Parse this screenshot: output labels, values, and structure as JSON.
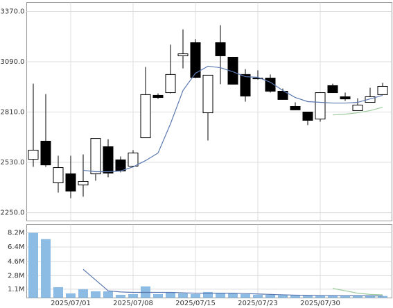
{
  "chart_data": [
    {
      "type": "candlestick",
      "open": [
        2547,
        2648,
        2416,
        2466,
        2404,
        2466,
        2617,
        2544,
        2509,
        2667,
        2903,
        2918,
        3123,
        3196,
        2806,
        3196,
        3115,
        3019,
        2995,
        2999,
        2926,
        2841,
        2810,
        2771,
        2957,
        2895,
        2818,
        2864,
        2907
      ],
      "high": [
        2968,
        2910,
        2567,
        2567,
        2574,
        2663,
        2659,
        2563,
        2598,
        3061,
        2914,
        3185,
        3270,
        3216,
        3015,
        3293,
        3115,
        3049,
        3042,
        3019,
        2941,
        2864,
        2810,
        2918,
        2968,
        2918,
        2887,
        2945,
        2972
      ],
      "low": [
        2505,
        2505,
        2362,
        2331,
        2339,
        2428,
        2447,
        2474,
        2505,
        2667,
        2883,
        2914,
        3053,
        2999,
        2652,
        2965,
        2965,
        2868,
        2991,
        2918,
        2880,
        2822,
        2737,
        2756,
        2918,
        2872,
        2818,
        2864,
        2907
      ],
      "close": [
        2598,
        2516,
        2501,
        2370,
        2424,
        2663,
        2470,
        2482,
        2582,
        2907,
        2891,
        3019,
        3134,
        3003,
        3015,
        3123,
        2965,
        2899,
        2999,
        2926,
        2880,
        2822,
        2764,
        2918,
        2918,
        2883,
        2849,
        2895,
        2953
      ],
      "up_color": "#ffffff",
      "down_color": "#000000",
      "outline_color": "#000000",
      "lines": [
        {
          "color": "#5a78b0",
          "values": [
            null,
            null,
            null,
            null,
            2486,
            2478,
            2478,
            2482,
            2505,
            2540,
            2582,
            2745,
            2930,
            3026,
            3065,
            3057,
            3034,
            3007,
            3003,
            2976,
            2930,
            2891,
            2868,
            2864,
            2860,
            2860,
            2864,
            2883,
            2903
          ]
        },
        {
          "color": "#9ccc9c",
          "values": [
            null,
            null,
            null,
            null,
            null,
            null,
            null,
            null,
            null,
            null,
            null,
            null,
            null,
            null,
            null,
            null,
            null,
            null,
            null,
            null,
            null,
            null,
            null,
            null,
            2794,
            2798,
            2806,
            2818,
            2837
          ]
        }
      ],
      "ylim": [
        2204,
        3420
      ],
      "yticks": [
        {
          "value": 2250,
          "label": "2250.0"
        },
        {
          "value": 2530,
          "label": "2530.0"
        },
        {
          "value": 2810,
          "label": "2810.0"
        },
        {
          "value": 3090,
          "label": "3090.0"
        },
        {
          "value": 3370,
          "label": "3370.0"
        }
      ],
      "grid": true
    },
    {
      "type": "bar",
      "categories": [
        null,
        null,
        null,
        "2025/07/01",
        null,
        null,
        null,
        null,
        "2025/07/08",
        null,
        null,
        null,
        null,
        "2025/07/15",
        null,
        null,
        null,
        null,
        "2025/07/23",
        null,
        null,
        null,
        null,
        "2025/07/30",
        null,
        null,
        null,
        null,
        null
      ],
      "values": [
        8200000,
        7400000,
        1360000,
        570000,
        1100000,
        830000,
        830000,
        400000,
        480000,
        1450000,
        480000,
        660000,
        570000,
        480000,
        750000,
        660000,
        570000,
        480000,
        400000,
        400000,
        350000,
        350000,
        300000,
        300000,
        300000,
        250000,
        250000,
        250000,
        250000
      ],
      "color": "#8cbbe3",
      "lines": [
        {
          "color": "#5a78b0",
          "values": [
            null,
            null,
            null,
            null,
            3600000,
            2250000,
            900000,
            750000,
            700000,
            700000,
            700000,
            700000,
            650000,
            600000,
            600000,
            600000,
            600000,
            550000,
            500000,
            450000,
            400000,
            350000,
            330000,
            300000,
            300000,
            280000,
            270000,
            260000,
            250000
          ]
        },
        {
          "color": "#9ccc9c",
          "values": [
            null,
            null,
            null,
            null,
            null,
            null,
            null,
            null,
            null,
            null,
            null,
            null,
            null,
            null,
            null,
            null,
            null,
            null,
            null,
            null,
            null,
            null,
            null,
            null,
            1200000,
            900000,
            600000,
            450000,
            400000
          ]
        }
      ],
      "ylim": [
        0,
        9250000
      ],
      "yticks": [
        {
          "value": 1100000,
          "label": "1.1M"
        },
        {
          "value": 2800000,
          "label": "2.8M"
        },
        {
          "value": 4600000,
          "label": "4.6M"
        },
        {
          "value": 6400000,
          "label": "6.4M"
        },
        {
          "value": 8200000,
          "label": "8.2M"
        }
      ],
      "grid": true
    }
  ]
}
